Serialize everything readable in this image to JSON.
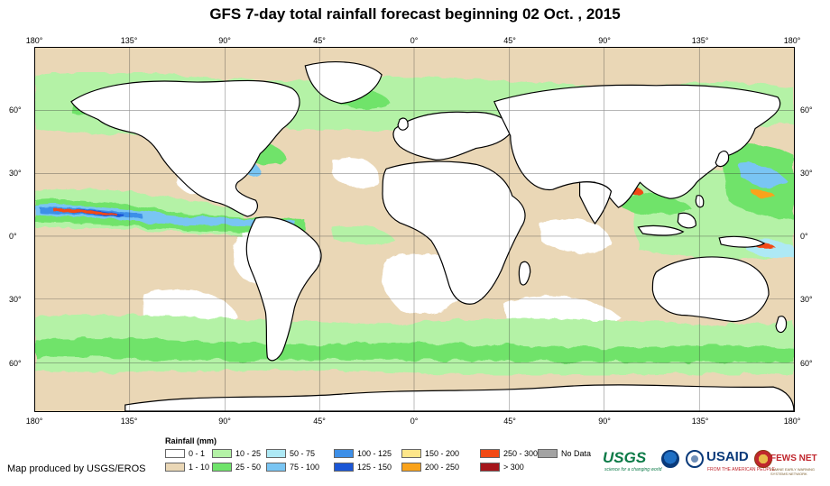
{
  "title": "GFS 7-day total rainfall forecast beginning 02 Oct. , 2015",
  "map_extent": {
    "lon": [
      -180,
      180
    ],
    "lat": [
      -85,
      85
    ]
  },
  "lon_ticks": [
    "180°",
    "135°",
    "90°",
    "45°",
    "0°",
    "45°",
    "90°",
    "135°",
    "180°"
  ],
  "lat_ticks": [
    "60°",
    "30°",
    "0°",
    "30°",
    "60°"
  ],
  "legend": {
    "title": "Rainfall (mm)",
    "items": [
      {
        "label": "0 - 1",
        "color": "#ffffff"
      },
      {
        "label": "1 - 10",
        "color": "#ead7b6"
      },
      {
        "label": "10 - 25",
        "color": "#b4f2a6"
      },
      {
        "label": "25 - 50",
        "color": "#6fe36a"
      },
      {
        "label": "50 - 75",
        "color": "#aee9f5"
      },
      {
        "label": "75 - 100",
        "color": "#79c5f3"
      },
      {
        "label": "100 - 125",
        "color": "#3d8fe8"
      },
      {
        "label": "125 - 150",
        "color": "#1a56d6"
      },
      {
        "label": "150 - 200",
        "color": "#fde68a"
      },
      {
        "label": "200 - 250",
        "color": "#f9a21a"
      },
      {
        "label": "250 - 300",
        "color": "#f24a15"
      },
      {
        "label": "> 300",
        "color": "#a5161b"
      },
      {
        "label": "No Data",
        "color": "#a3a3a3"
      }
    ]
  },
  "credit": "Map produced by USGS/EROS",
  "logos": {
    "usgs": "USGS",
    "usgs_tagline": "science for a changing world",
    "noaa": "noaa-emblem",
    "usaid_seal": "usaid-seal",
    "usaid": "USAID",
    "usaid_tagline": "FROM THE AMERICAN PEOPLE",
    "fews": "FEWS NET",
    "fews_tagline": "FAMINE EARLY WARNING SYSTEMS NETWORK"
  }
}
